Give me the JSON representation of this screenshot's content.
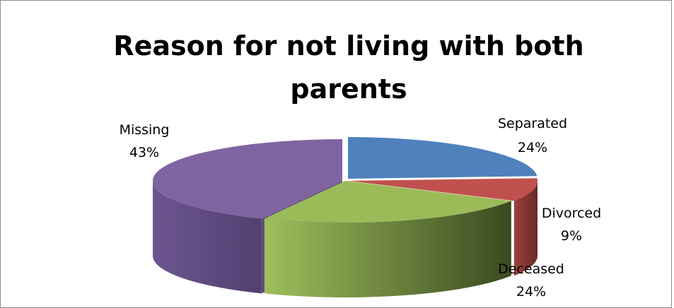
{
  "chart_data": {
    "type": "pie",
    "title": "Reason for not living with both parents",
    "title_lines": [
      "Reason for not living with both",
      "parents"
    ],
    "slices": [
      {
        "name": "Separated",
        "value": 24,
        "label": "24%",
        "color": "#4F81BD"
      },
      {
        "name": "Divorced",
        "value": 9,
        "label": "9%",
        "color": "#C0504D"
      },
      {
        "name": "Deceased",
        "value": 24,
        "label": "24%",
        "color": "#9BBB59"
      },
      {
        "name": "Missing",
        "value": 43,
        "label": "43%",
        "color": "#8064A2"
      }
    ],
    "style": "3d-exploded-pie"
  }
}
